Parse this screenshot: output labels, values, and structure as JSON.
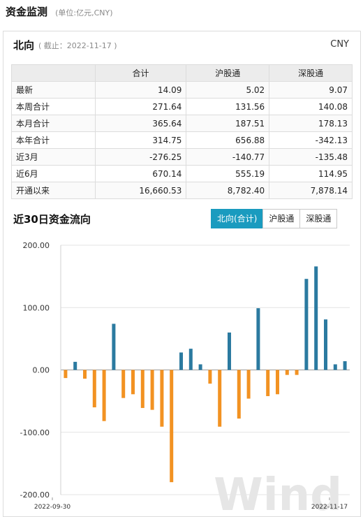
{
  "header": {
    "title": "资金监测",
    "unit": "(单位:亿元,CNY)"
  },
  "panel": {
    "direction": "北向",
    "as_of": "( 截止：2022-11-17 )",
    "currency": "CNY"
  },
  "table": {
    "columns": [
      "",
      "合计",
      "沪股通",
      "深股通"
    ],
    "rows": [
      {
        "label": "最新",
        "values": [
          "14.09",
          "5.02",
          "9.07"
        ]
      },
      {
        "label": "本周合计",
        "values": [
          "271.64",
          "131.56",
          "140.08"
        ]
      },
      {
        "label": "本月合计",
        "values": [
          "365.64",
          "187.51",
          "178.13"
        ]
      },
      {
        "label": "本年合计",
        "values": [
          "314.75",
          "656.88",
          "-342.13"
        ]
      },
      {
        "label": "近3月",
        "values": [
          "-276.25",
          "-140.77",
          "-135.48"
        ]
      },
      {
        "label": "近6月",
        "values": [
          "670.14",
          "555.19",
          "114.95"
        ]
      },
      {
        "label": "开通以来",
        "values": [
          "16,660.53",
          "8,782.40",
          "7,878.14"
        ]
      }
    ]
  },
  "section": {
    "title": "近30日资金流向"
  },
  "tabs": [
    {
      "label": "北向(合计)",
      "active": true
    },
    {
      "label": "沪股通",
      "active": false
    },
    {
      "label": "深股通",
      "active": false
    }
  ],
  "watermark": "Wind",
  "chart_data": {
    "type": "bar",
    "title": "",
    "xlabel": "",
    "ylabel": "",
    "ylim": [
      -200,
      200
    ],
    "yticks": [
      200,
      100,
      0,
      -100,
      -200
    ],
    "ytick_labels": [
      "200.00",
      "100.00",
      "0.00",
      "-100.00",
      "-200.00"
    ],
    "x_start_label": "2022-09-30",
    "x_end_label": "2022-11-17",
    "positive_color": "#2b7aa0",
    "negative_color": "#f29222",
    "grid": true,
    "values": [
      -13,
      13,
      -14,
      -60,
      -82,
      74,
      -45,
      -39,
      -61,
      -64,
      -91,
      -180,
      28,
      34,
      9,
      -22,
      -91,
      60,
      -78,
      -46,
      99,
      -42,
      -39,
      -8,
      -8,
      146,
      166,
      81,
      9,
      14
    ]
  }
}
